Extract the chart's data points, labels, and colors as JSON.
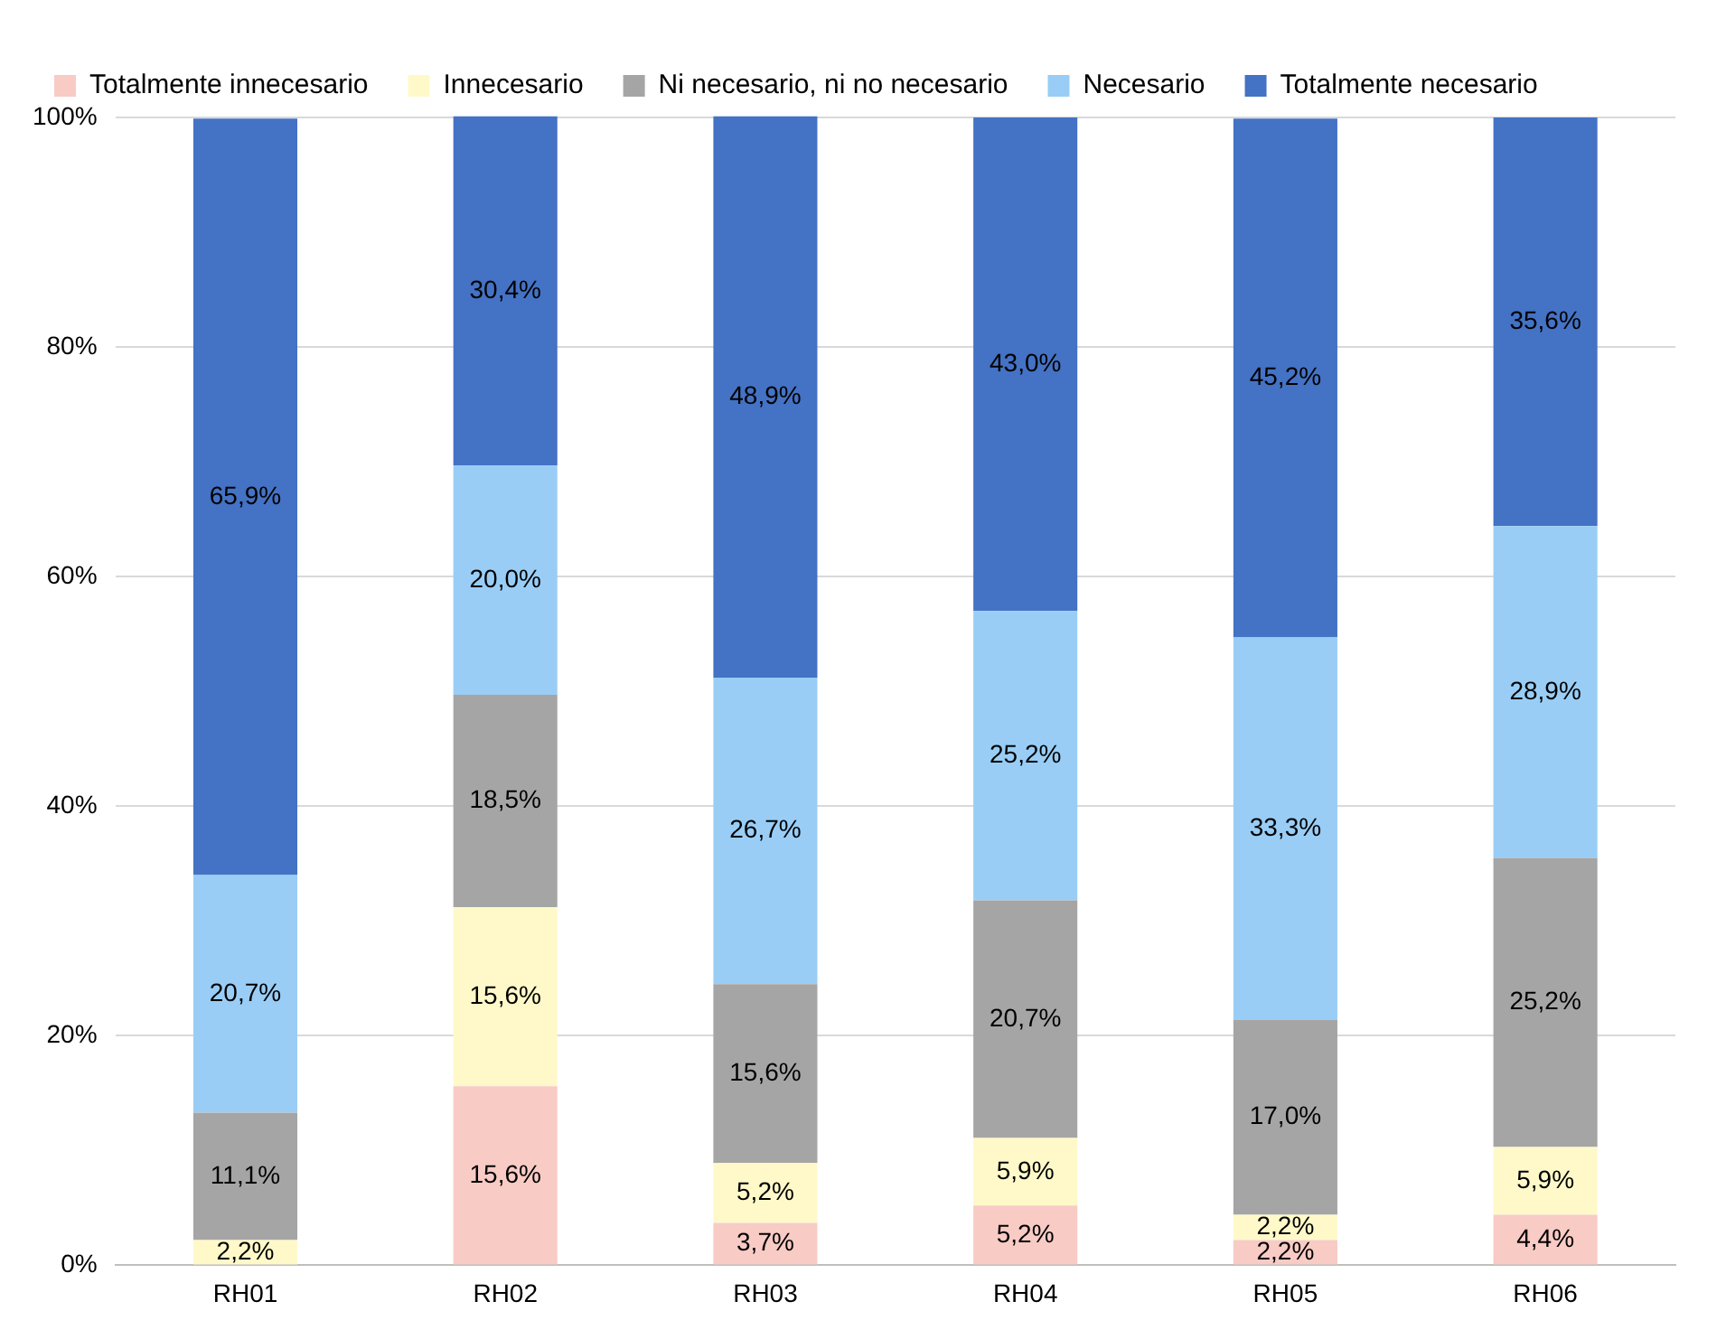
{
  "chart_data": {
    "type": "bar",
    "stacked": true,
    "categories": [
      "RH01",
      "RH02",
      "RH03",
      "RH04",
      "RH05",
      "RH06"
    ],
    "series": [
      {
        "name": "Totalmente innecesario",
        "color": "#f8cbc5",
        "values": [
          0,
          15.6,
          3.7,
          5.2,
          2.2,
          4.4
        ],
        "value_labels": [
          null,
          "15,6%",
          "3,7%",
          "5,2%",
          "2,2%",
          "4,4%"
        ]
      },
      {
        "name": "Innecesario",
        "color": "#fff9c9",
        "values": [
          2.2,
          15.6,
          5.2,
          5.9,
          2.2,
          5.9
        ],
        "value_labels": [
          "2,2%",
          "15,6%",
          "5,2%",
          "5,9%",
          "2,2%",
          "5,9%"
        ]
      },
      {
        "name": "Ni necesario, ni no necesario",
        "color": "#a5a5a5",
        "values": [
          11.1,
          18.5,
          15.6,
          20.7,
          17.0,
          25.2
        ],
        "value_labels": [
          "11,1%",
          "18,5%",
          "15,6%",
          "20,7%",
          "17,0%",
          "25,2%"
        ]
      },
      {
        "name": "Necesario",
        "color": "#99cdf5",
        "values": [
          20.7,
          20.0,
          26.7,
          25.2,
          33.3,
          28.9
        ],
        "value_labels": [
          "20,7%",
          "20,0%",
          "26,7%",
          "25,2%",
          "33,3%",
          "28,9%"
        ]
      },
      {
        "name": "Totalmente necesario",
        "color": "#4472c4",
        "values": [
          65.9,
          30.4,
          48.9,
          43.0,
          45.2,
          35.6
        ],
        "value_labels": [
          "65,9%",
          "30,4%",
          "48,9%",
          "43,0%",
          "45,2%",
          "35,6%"
        ]
      }
    ],
    "ylim": [
      0,
      100
    ],
    "yticks": [
      {
        "value": 0,
        "label": "0%"
      },
      {
        "value": 20,
        "label": "20%"
      },
      {
        "value": 40,
        "label": "40%"
      },
      {
        "value": 60,
        "label": "60%"
      },
      {
        "value": 80,
        "label": "80%"
      },
      {
        "value": 100,
        "label": "100%"
      }
    ],
    "grid": "y",
    "legend": "top"
  }
}
